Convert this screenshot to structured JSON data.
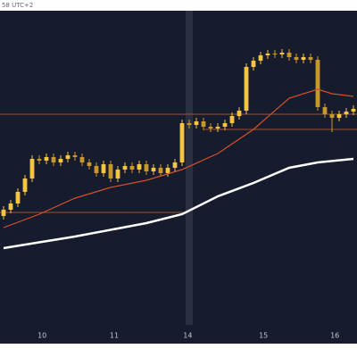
{
  "chart_data": {
    "type": "candlestick",
    "subtitle": "58 UTC+2",
    "ylim": [
      16,
      388
    ],
    "xlim": [
      -0.5,
      49.5
    ],
    "xticks": [
      {
        "value": 5.4,
        "label": "10"
      },
      {
        "value": 15.5,
        "label": "11"
      },
      {
        "value": 25.8,
        "label": "14"
      },
      {
        "value": 36.4,
        "label": "15"
      },
      {
        "value": 46.4,
        "label": "16"
      }
    ],
    "up_color": "#f5c542",
    "down_color": "#c9982b",
    "open": [
      158,
      165,
      172,
      185,
      200,
      222,
      220,
      224,
      218,
      222,
      226,
      224,
      218,
      214,
      206,
      216,
      200,
      210,
      214,
      210,
      216,
      208,
      212,
      206,
      212,
      218,
      262,
      260,
      264,
      258,
      256,
      258,
      262,
      270,
      276,
      325,
      332,
      338,
      340,
      339,
      341,
      336,
      333,
      336,
      333,
      280,
      272,
      268,
      272,
      275
    ],
    "high": [
      169,
      176,
      189,
      204,
      226,
      226,
      228,
      228,
      226,
      230,
      230,
      228,
      222,
      218,
      220,
      220,
      214,
      218,
      218,
      220,
      220,
      216,
      216,
      216,
      222,
      266,
      266,
      268,
      268,
      262,
      262,
      266,
      274,
      280,
      329,
      336,
      342,
      344,
      344,
      345,
      345,
      340,
      340,
      340,
      337,
      284,
      276,
      276,
      279,
      282
    ],
    "low": [
      154,
      161,
      168,
      181,
      196,
      216,
      216,
      214,
      214,
      218,
      220,
      214,
      210,
      202,
      202,
      196,
      196,
      206,
      206,
      206,
      204,
      204,
      202,
      202,
      208,
      214,
      256,
      256,
      254,
      252,
      252,
      254,
      258,
      266,
      272,
      321,
      328,
      334,
      335,
      335,
      332,
      329,
      329,
      329,
      276,
      268,
      252,
      264,
      268,
      271
    ],
    "close": [
      165,
      172,
      185,
      200,
      222,
      220,
      224,
      218,
      222,
      226,
      224,
      218,
      214,
      206,
      216,
      200,
      210,
      214,
      210,
      216,
      208,
      212,
      206,
      212,
      218,
      262,
      260,
      264,
      258,
      256,
      258,
      262,
      270,
      276,
      325,
      332,
      338,
      340,
      339,
      341,
      336,
      333,
      336,
      333,
      280,
      272,
      268,
      272,
      275,
      278
    ],
    "lines": [
      {
        "color": "#d2522a",
        "x": [
          0,
          5,
          10,
          15,
          20,
          25,
          30,
          35,
          40,
          44,
          46,
          49
        ],
        "values": [
          145,
          160,
          178,
          190,
          198,
          210,
          228,
          255,
          290,
          300,
          295,
          292
        ]
      },
      {
        "color": "#ffffff",
        "x": [
          0,
          10,
          20,
          25,
          30,
          35,
          40,
          44,
          49
        ],
        "values": [
          122,
          135,
          150,
          160,
          180,
          195,
          212,
          218,
          222
        ]
      }
    ],
    "hlines": [
      {
        "value": 272,
        "from": -0.5,
        "to": 49.5,
        "color": "#a0522d"
      },
      {
        "value": 255,
        "from": 28,
        "to": 49.5,
        "color": "#a0522d"
      },
      {
        "value": 162,
        "from": -0.5,
        "to": 25.5,
        "color": "#a0522d"
      }
    ]
  }
}
